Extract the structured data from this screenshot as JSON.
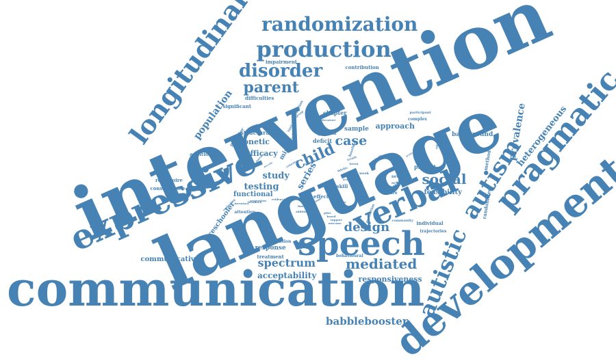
{
  "theme": {
    "word_color": "#4682b4",
    "background": "#ffffff"
  },
  "words": [
    {
      "text": "intervention",
      "weight": 100
    },
    {
      "text": "language",
      "weight": 96
    },
    {
      "text": "communication",
      "weight": 78
    },
    {
      "text": "development",
      "weight": 60
    },
    {
      "text": "expressive",
      "weight": 50
    },
    {
      "text": "speech",
      "weight": 45
    },
    {
      "text": "verbal",
      "weight": 44
    },
    {
      "text": "pragmatic",
      "weight": 42
    },
    {
      "text": "longitudinal",
      "weight": 38
    },
    {
      "text": "autism",
      "weight": 36
    },
    {
      "text": "autistic",
      "weight": 33
    },
    {
      "text": "production",
      "weight": 32
    },
    {
      "text": "randomization",
      "weight": 28
    },
    {
      "text": "disorder",
      "weight": 25
    },
    {
      "text": "parent",
      "weight": 22
    },
    {
      "text": "child",
      "weight": 22
    },
    {
      "text": "mediated",
      "weight": 20
    },
    {
      "text": "social",
      "weight": 20
    },
    {
      "text": "case",
      "weight": 19
    },
    {
      "text": "design",
      "weight": 18
    },
    {
      "text": "spectrum",
      "weight": 16
    },
    {
      "text": "babblebooster",
      "weight": 15
    },
    {
      "text": "population",
      "weight": 15
    },
    {
      "text": "heterogeneous",
      "weight": 14
    },
    {
      "text": "prevalence",
      "weight": 14
    },
    {
      "text": "testing",
      "weight": 13
    },
    {
      "text": "study",
      "weight": 13
    },
    {
      "text": "series",
      "weight": 13
    },
    {
      "text": "acceptability",
      "weight": 12
    },
    {
      "text": "responsiveness",
      "weight": 11
    },
    {
      "text": "phonetic",
      "weight": 11
    },
    {
      "text": "efficacy",
      "weight": 11
    },
    {
      "text": "approach",
      "weight": 11
    },
    {
      "text": "functional",
      "weight": 10
    },
    {
      "text": "preschooler",
      "weight": 10
    },
    {
      "text": "communicative",
      "weight": 10
    },
    {
      "text": "feasibility",
      "weight": 10
    },
    {
      "text": "single",
      "weight": 10
    },
    {
      "text": "response",
      "weight": 9
    },
    {
      "text": "minimal",
      "weight": 9
    },
    {
      "text": "sample",
      "weight": 9
    },
    {
      "text": "background",
      "weight": 9
    },
    {
      "text": "structural",
      "weight": 8
    },
    {
      "text": "chapter",
      "weight": 8
    },
    {
      "text": "deficit",
      "weight": 8
    },
    {
      "text": "predict",
      "weight": 8
    },
    {
      "text": "randomized",
      "weight": 8
    },
    {
      "text": "method",
      "weight": 8
    },
    {
      "text": "repertoire",
      "weight": 7
    },
    {
      "text": "consequence",
      "weight": 7
    },
    {
      "text": "additional",
      "weight": 7
    },
    {
      "text": "significant",
      "weight": 7
    },
    {
      "text": "difficulties",
      "weight": 7
    },
    {
      "text": "impairment",
      "weight": 7
    },
    {
      "text": "contribution",
      "weight": 7
    },
    {
      "text": "growth",
      "weight": 7
    },
    {
      "text": "treatment",
      "weight": 7
    },
    {
      "text": "behavioural",
      "weight": 7
    },
    {
      "text": "conclusion",
      "weight": 7
    },
    {
      "text": "attention",
      "weight": 7
    },
    {
      "text": "individual",
      "weight": 7
    },
    {
      "text": "trajectories",
      "weight": 7
    },
    {
      "text": "complex",
      "weight": 7
    },
    {
      "text": "future",
      "weight": 7
    },
    {
      "text": "effect",
      "weight": 7
    },
    {
      "text": "skill",
      "weight": 7
    },
    {
      "text": "severity",
      "weight": 6
    },
    {
      "text": "academic",
      "weight": 6
    },
    {
      "text": "participant",
      "weight": 6
    },
    {
      "text": "community",
      "weight": 6
    },
    {
      "text": "predictor",
      "weight": 6
    },
    {
      "text": "evaluation",
      "weight": 6
    },
    {
      "text": "studies",
      "weight": 6
    },
    {
      "text": "week",
      "weight": 6
    },
    {
      "text": "expectation",
      "weight": 5
    },
    {
      "text": "literature",
      "weight": 5
    },
    {
      "text": "adherence",
      "weight": 5
    },
    {
      "text": "variable",
      "weight": 5
    },
    {
      "text": "baseline",
      "weight": 5
    },
    {
      "text": "evidence",
      "weight": 4
    },
    {
      "text": "outcome",
      "weight": 4
    },
    {
      "text": "feedback",
      "weight": 4
    },
    {
      "text": "proportion",
      "weight": 4
    },
    {
      "text": "limited",
      "weight": 4
    },
    {
      "text": "abilities",
      "weight": 4
    },
    {
      "text": "evaluating",
      "weight": 4
    },
    {
      "text": "narrow",
      "weight": 4
    },
    {
      "text": "latent",
      "weight": 3
    },
    {
      "text": "score",
      "weight": 3
    },
    {
      "text": "pilot",
      "weight": 3
    },
    {
      "text": "based",
      "weight": 3
    },
    {
      "text": "support",
      "weight": 3
    },
    {
      "text": "advocate",
      "weight": 3
    },
    {
      "text": "inventory",
      "weight": 3
    },
    {
      "text": "describe",
      "weight": 3
    },
    {
      "text": "profile",
      "weight": 3
    },
    {
      "text": "total",
      "weight": 3
    },
    {
      "text": "symptoms",
      "weight": 3
    },
    {
      "text": "criterion",
      "weight": 3
    },
    {
      "text": "group",
      "weight": 3
    },
    {
      "text": "diagnosis",
      "weight": 3
    },
    {
      "text": "fidelity",
      "weight": 3
    },
    {
      "text": "trends",
      "weight": 3
    }
  ]
}
